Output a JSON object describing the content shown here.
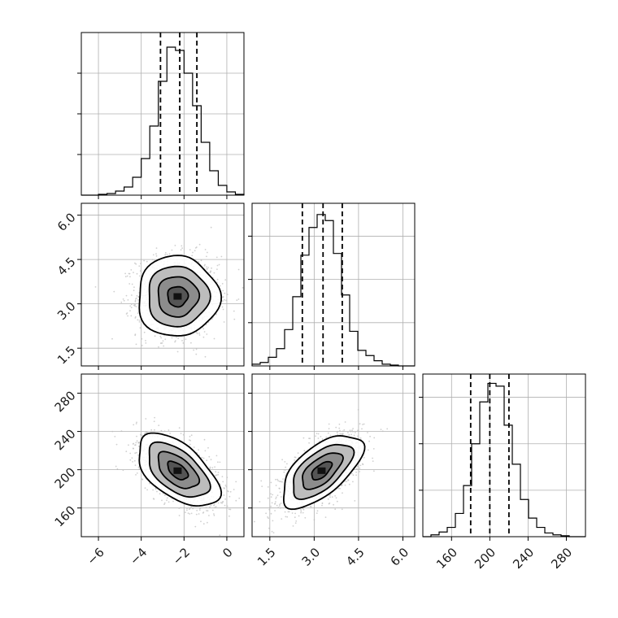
{
  "chart_data": {
    "type": "corner",
    "title": "",
    "variables": [
      {
        "index": 0,
        "range": [
          -6.8,
          0.8
        ],
        "ticks": [
          -6,
          -4,
          -2,
          0
        ],
        "tick_labels": [
          "−6",
          "−4",
          "−2",
          "0"
        ],
        "mean": -2.3,
        "sd": 0.95,
        "quantiles": [
          -3.1,
          -2.2,
          -1.4
        ]
      },
      {
        "index": 1,
        "range": [
          0.9,
          6.4
        ],
        "ticks": [
          1.5,
          3.0,
          4.5,
          6.0
        ],
        "tick_labels": [
          "1.5",
          "3.0",
          "4.5",
          "6.0"
        ],
        "mean": 3.25,
        "sd": 0.68,
        "quantiles": [
          2.6,
          3.3,
          3.95
        ]
      },
      {
        "index": 2,
        "range": [
          130,
          300
        ],
        "ticks": [
          160,
          200,
          240,
          280
        ],
        "tick_labels": [
          "160",
          "200",
          "240",
          "280"
        ],
        "mean": 199,
        "sd": 19,
        "quantiles": [
          180,
          200,
          220
        ]
      }
    ],
    "histograms": [
      {
        "variable": 0,
        "bin_edges": [
          -6.8,
          -6.4,
          -6.0,
          -5.6,
          -5.2,
          -4.8,
          -4.4,
          -4.0,
          -3.6,
          -3.2,
          -2.8,
          -2.4,
          -2.0,
          -1.6,
          -1.2,
          -0.8,
          -0.4,
          0.0,
          0.4,
          0.8
        ],
        "counts": [
          0,
          0,
          1,
          2,
          5,
          10,
          22,
          45,
          85,
          140,
          182,
          178,
          150,
          110,
          65,
          30,
          12,
          4,
          1
        ],
        "ylim": [
          0,
          200
        ],
        "yticks": [
          0,
          50,
          100,
          150
        ]
      },
      {
        "variable": 1,
        "bin_edges": [
          0.9,
          1.175,
          1.45,
          1.725,
          2.0,
          2.275,
          2.55,
          2.825,
          3.1,
          3.375,
          3.65,
          3.925,
          4.2,
          4.475,
          4.75,
          5.025,
          5.3,
          5.575,
          5.85,
          6.125,
          6.4
        ],
        "counts": [
          2,
          4,
          10,
          20,
          42,
          80,
          128,
          160,
          175,
          168,
          130,
          82,
          40,
          18,
          12,
          6,
          2,
          1,
          0,
          0
        ],
        "ylim": [
          0,
          188
        ],
        "yticks": [
          0,
          50,
          100,
          150
        ]
      },
      {
        "variable": 2,
        "bin_edges": [
          130,
          138.5,
          147,
          155.5,
          164,
          172.5,
          181,
          189.5,
          198,
          206.5,
          215,
          223.5,
          232,
          240.5,
          249,
          257.5,
          266,
          274.5,
          283,
          291.5,
          300
        ],
        "counts": [
          0,
          2,
          5,
          10,
          25,
          55,
          100,
          145,
          165,
          162,
          120,
          78,
          40,
          20,
          10,
          4,
          2,
          1,
          0,
          0
        ],
        "ylim": [
          0,
          175
        ],
        "yticks": [
          0,
          50,
          100,
          150
        ]
      }
    ],
    "density_panels": [
      {
        "x_variable": 0,
        "y_variable": 1,
        "n_points": 1400,
        "correlation": 0.0
      },
      {
        "x_variable": 0,
        "y_variable": 2,
        "n_points": 1400,
        "correlation": -0.55
      },
      {
        "x_variable": 1,
        "y_variable": 2,
        "n_points": 1400,
        "correlation": 0.62
      }
    ],
    "contour_levels_sigma": [
      0.5,
      1.0,
      1.5,
      2.0
    ],
    "grid": true,
    "colors": {
      "histogram": "#000000",
      "points": "#bcbcbc",
      "density_high": "#3a3a3a",
      "grid": "#b0b0b0"
    }
  }
}
